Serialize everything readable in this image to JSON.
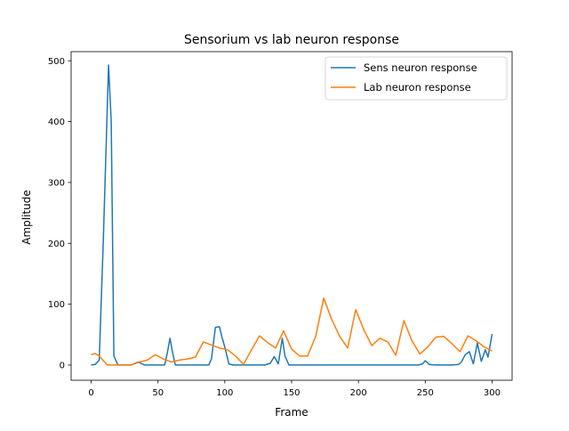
{
  "chart_data": {
    "type": "line",
    "title": "Sensorium vs lab neuron response",
    "xlabel": "Frame",
    "ylabel": "Amplitude",
    "xlim": [
      -15,
      315
    ],
    "ylim": [
      -25,
      515
    ],
    "xticks": [
      0,
      50,
      100,
      150,
      200,
      250,
      300
    ],
    "yticks": [
      0,
      100,
      200,
      300,
      400,
      500
    ],
    "grid": false,
    "legend_position": "upper right",
    "series": [
      {
        "name": "Sens neuron response",
        "color": "#1f77b4",
        "x": [
          0,
          3,
          6,
          9,
          13,
          15,
          17,
          20,
          25,
          30,
          35,
          40,
          45,
          50,
          55,
          57,
          59,
          61,
          63,
          66,
          70,
          75,
          80,
          85,
          88,
          90,
          93,
          96,
          98,
          100,
          103,
          106,
          110,
          115,
          120,
          125,
          130,
          134,
          137,
          140,
          143,
          145,
          148,
          150,
          155,
          160,
          170,
          180,
          190,
          200,
          210,
          220,
          230,
          240,
          245,
          248,
          250,
          253,
          257,
          260,
          265,
          270,
          275,
          277,
          280,
          283,
          286,
          289,
          292,
          295,
          297,
          300
        ],
        "y": [
          0,
          1,
          8,
          200,
          493,
          400,
          15,
          0,
          0,
          0,
          5,
          0,
          0,
          0,
          0,
          20,
          44,
          20,
          0,
          0,
          0,
          0,
          0,
          0,
          0,
          10,
          62,
          63,
          45,
          30,
          2,
          0,
          0,
          0,
          0,
          0,
          0,
          3,
          14,
          2,
          44,
          15,
          0,
          0,
          0,
          0,
          0,
          0,
          0,
          0,
          0,
          0,
          0,
          0,
          0,
          2,
          7,
          1,
          0,
          0,
          0,
          0,
          1,
          5,
          17,
          22,
          2,
          36,
          6,
          25,
          13,
          51
        ]
      },
      {
        "name": "Lab neuron response",
        "color": "#ff7f0e",
        "x": [
          0,
          3,
          6,
          12,
          24,
          30,
          36,
          42,
          48,
          54,
          60,
          66,
          72,
          78,
          84,
          90,
          96,
          102,
          108,
          114,
          120,
          126,
          132,
          138,
          144,
          150,
          156,
          162,
          168,
          174,
          180,
          186,
          192,
          198,
          204,
          210,
          216,
          222,
          228,
          234,
          240,
          246,
          252,
          258,
          264,
          270,
          276,
          282,
          288,
          294,
          300
        ],
        "y": [
          17,
          19,
          15,
          0,
          0,
          0,
          5,
          8,
          17,
          10,
          5,
          8,
          10,
          13,
          38,
          33,
          28,
          25,
          15,
          1,
          25,
          48,
          37,
          28,
          56,
          26,
          15,
          15,
          47,
          110,
          75,
          47,
          28,
          91,
          58,
          32,
          44,
          38,
          16,
          73,
          40,
          18,
          30,
          46,
          47,
          35,
          22,
          48,
          40,
          30,
          23
        ]
      }
    ]
  }
}
